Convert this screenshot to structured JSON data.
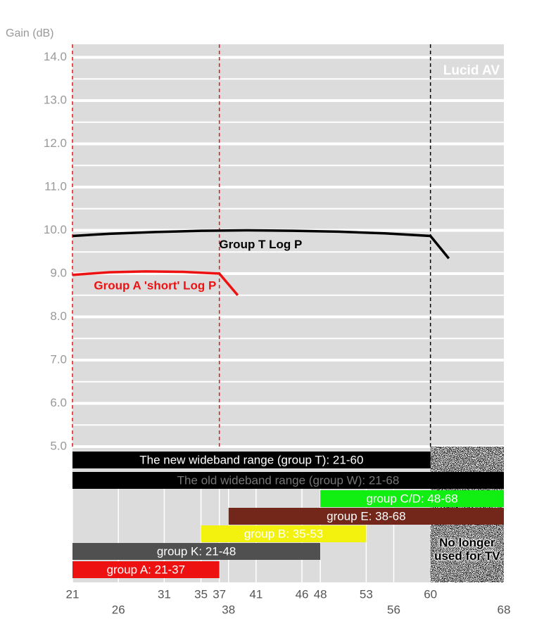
{
  "chart_data": {
    "type": "line",
    "ylabel": "Gain (dB)",
    "watermark": "Lucid AV",
    "xlim": [
      21,
      68
    ],
    "ylim": [
      5,
      14.3
    ],
    "yticks": [
      {
        "value": 5,
        "label": "5.0"
      },
      {
        "value": 6,
        "label": "6.0"
      },
      {
        "value": 7,
        "label": "7.0"
      },
      {
        "value": 8,
        "label": "8.0"
      },
      {
        "value": 9,
        "label": "9.0"
      },
      {
        "value": 10,
        "label": "10.0"
      },
      {
        "value": 11,
        "label": "11.0"
      },
      {
        "value": 12,
        "label": "12.0"
      },
      {
        "value": 13,
        "label": "13.0"
      },
      {
        "value": 14,
        "label": "14.0"
      }
    ],
    "xticks": [
      21,
      26,
      31,
      35,
      37,
      38,
      41,
      46,
      48,
      53,
      56,
      60,
      68
    ],
    "grid": true,
    "series": [
      {
        "name": "Group T Log P",
        "color": "#000000",
        "x": [
          21,
          25,
          30,
          35,
          40,
          45,
          50,
          55,
          60,
          62
        ],
        "values": [
          9.87,
          9.92,
          9.96,
          9.99,
          10.0,
          9.99,
          9.97,
          9.93,
          9.87,
          9.35
        ]
      },
      {
        "name": "Group A 'short' Log P",
        "color": "#ee1111",
        "x": [
          21,
          25,
          29,
          33,
          37,
          39
        ],
        "values": [
          8.97,
          9.03,
          9.05,
          9.04,
          9.0,
          8.5
        ]
      }
    ],
    "vlines": [
      {
        "x": 21,
        "color": "#ee1111"
      },
      {
        "x": 37,
        "color": "#ee1111"
      },
      {
        "x": 60,
        "color": "#000000"
      }
    ],
    "ranges": [
      {
        "label": "The new wideband range (group T): 21-60",
        "start": 21,
        "end": 60,
        "color": "#000000",
        "text_color": "#ffffff"
      },
      {
        "label": "The old wideband range (group W): 21-68",
        "start": 21,
        "end": 68,
        "color": "#000000",
        "text_color": "#777777"
      },
      {
        "label": "group C/D: 48-68",
        "start": 48,
        "end": 68,
        "color": "#11ee11",
        "text_color": "#ffffff"
      },
      {
        "label": "group E: 38-68",
        "start": 38,
        "end": 68,
        "color": "#72271a",
        "text_color": "#ffffff"
      },
      {
        "label": "group B: 35-53",
        "start": 35,
        "end": 53,
        "color": "#f2f20e",
        "text_color": "#ffffff"
      },
      {
        "label": "group K: 21-48",
        "start": 21,
        "end": 48,
        "color": "#505050",
        "text_color": "#ffffff"
      },
      {
        "label": "group A: 21-37",
        "start": 21,
        "end": 37,
        "color": "#ee1111",
        "text_color": "#ffffff"
      }
    ],
    "retired": {
      "start": 60,
      "end": 68,
      "label": "No longer used for TV"
    }
  }
}
